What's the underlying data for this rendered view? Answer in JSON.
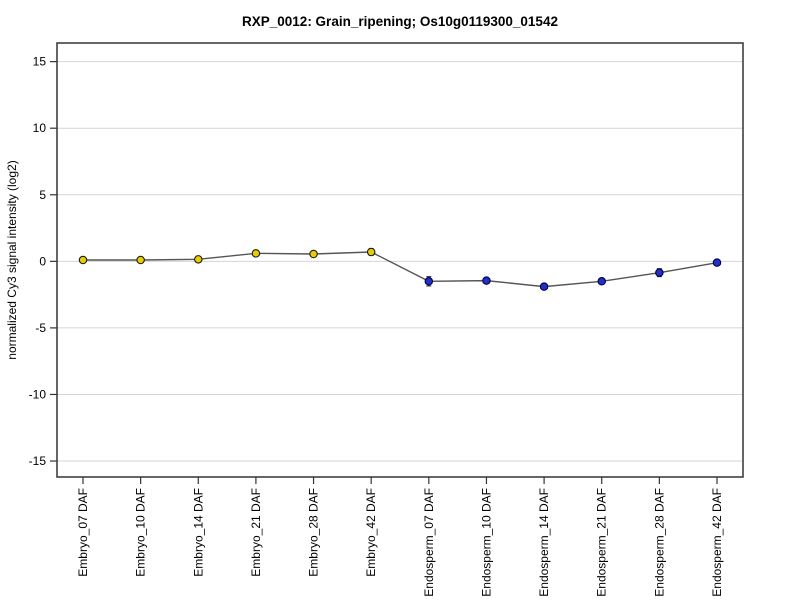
{
  "chart_data": {
    "type": "line",
    "title": "RXP_0012: Grain_ripening; Os10g0119300_01542",
    "ylabel": "normalized Cy3 signal intensity (log2)",
    "xlabel": "",
    "categories": [
      "Embryo_07 DAF",
      "Embryo_10 DAF",
      "Embryo_14 DAF",
      "Embryo_21 DAF",
      "Embryo_28 DAF",
      "Embryo_42 DAF",
      "Endosperm_07 DAF",
      "Endosperm_10 DAF",
      "Endosperm_14 DAF",
      "Endosperm_21 DAF",
      "Endosperm_28 DAF",
      "Endosperm_42 DAF"
    ],
    "series": [
      {
        "name": "normalized Cy3 signal intensity (log2)",
        "values": [
          0.1,
          0.1,
          0.15,
          0.6,
          0.55,
          0.7,
          -1.5,
          -1.45,
          -1.9,
          -1.5,
          -0.85,
          -0.1
        ],
        "errors": [
          0.1,
          0.15,
          0.1,
          0.1,
          0.1,
          0.25,
          0.35,
          0.15,
          0.1,
          0.1,
          0.3,
          0.2
        ],
        "marker_fills": [
          "#e9cd00",
          "#e9cd00",
          "#e9cd00",
          "#e9cd00",
          "#e9cd00",
          "#e9cd00",
          "#2130c8",
          "#2130c8",
          "#2130c8",
          "#2130c8",
          "#2130c8",
          "#2130c8"
        ],
        "marker_strokes": [
          "#1a1a1a",
          "#1a1a1a",
          "#1a1a1a",
          "#1a1a1a",
          "#1a1a1a",
          "#1a1a1a",
          "#000040",
          "#000040",
          "#000040",
          "#000040",
          "#000040",
          "#000040"
        ]
      }
    ],
    "groups": [
      {
        "name": "Embryo",
        "color": "#e9cd00"
      },
      {
        "name": "Endosperm",
        "color": "#2130c8"
      }
    ],
    "yticks": [
      -15,
      -10,
      -5,
      0,
      5,
      10,
      15
    ],
    "ylim": [
      -16.2,
      16.4
    ],
    "grid": true,
    "legend": "none",
    "colors": {
      "background": "#ffffff",
      "grid": "#d4d4d4",
      "axis": "#333333",
      "line": "#555555",
      "error_bar": "#222222",
      "text": "#000000"
    }
  }
}
